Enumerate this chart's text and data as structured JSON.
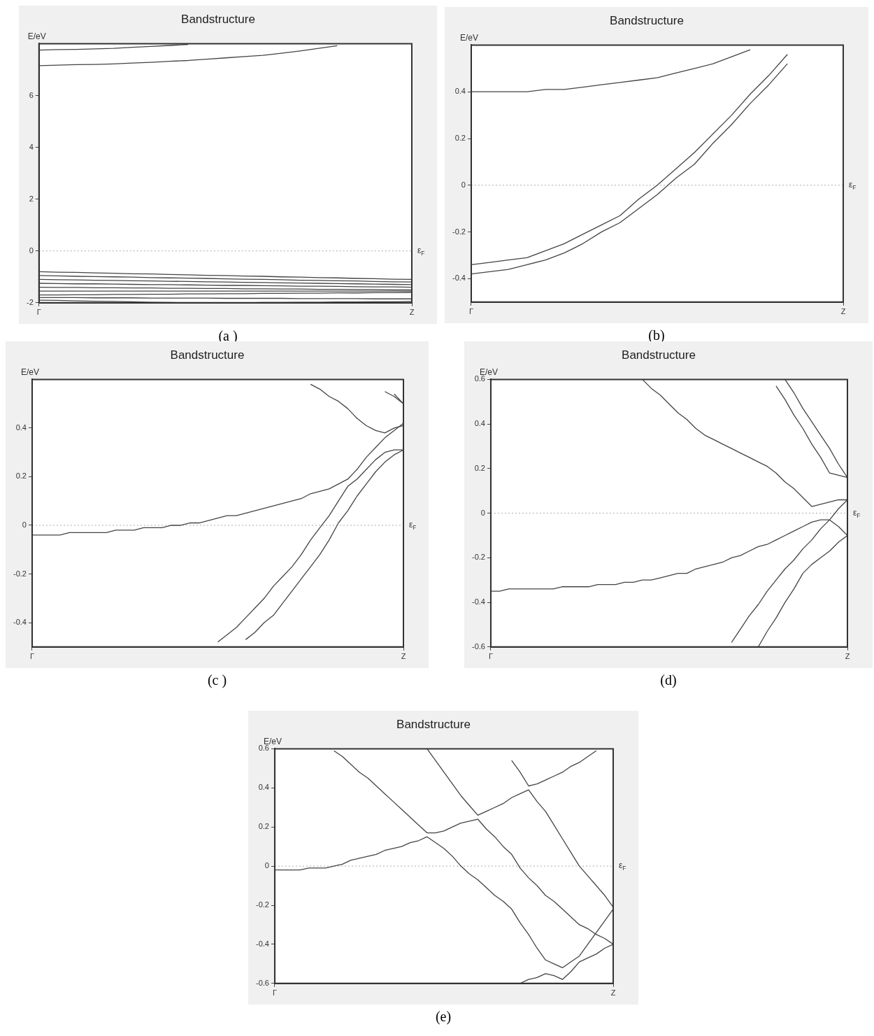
{
  "chart_data": [
    {
      "type": "line",
      "title": "Bandstructure",
      "ylabel": "E/eV",
      "categories": [
        "Γ",
        null,
        null,
        null,
        null,
        null,
        null,
        null,
        null,
        null,
        null,
        null,
        null,
        null,
        null,
        null,
        null,
        null,
        null,
        null,
        "Z"
      ],
      "ylim": [
        -2,
        8
      ],
      "yticks": [
        -2,
        0,
        2,
        4,
        6
      ],
      "marker": "none",
      "line_style": "solid",
      "ref_lines": [
        {
          "axis": "y",
          "value": 0,
          "label": "ε$_{F}$",
          "color": "#aaaaaa",
          "line_style": "dotted"
        }
      ],
      "annotations": [
        "(a )"
      ],
      "series": [
        {
          "color": "#444444",
          "values": [
            7.75,
            7.77,
            7.78,
            7.8,
            7.82,
            7.86,
            7.89,
            7.93,
            7.97,
            null,
            null,
            null,
            null,
            null,
            null,
            null,
            null,
            null,
            null,
            null,
            null
          ]
        },
        {
          "color": "#444444",
          "values": [
            7.15,
            7.17,
            7.19,
            7.2,
            7.22,
            7.25,
            7.28,
            7.32,
            7.35,
            7.4,
            7.45,
            7.5,
            7.55,
            7.63,
            7.72,
            7.82,
            7.92,
            null,
            null,
            null,
            null
          ]
        },
        {
          "color": "#444444",
          "values": [
            -0.8,
            -0.82,
            -0.83,
            -0.85,
            -0.86,
            -0.88,
            -0.89,
            -0.91,
            -0.92,
            -0.94,
            -0.95,
            -0.97,
            -0.98,
            -1.0,
            -1.01,
            -1.03,
            -1.04,
            -1.06,
            -1.07,
            -1.09,
            -1.1
          ]
        },
        {
          "color": "#444444",
          "values": [
            -0.95,
            -0.96,
            -0.98,
            -0.99,
            -1.0,
            -1.01,
            -1.03,
            -1.04,
            -1.05,
            -1.06,
            -1.08,
            -1.09,
            -1.1,
            -1.11,
            -1.13,
            -1.14,
            -1.15,
            -1.16,
            -1.18,
            -1.19,
            -1.2
          ]
        },
        {
          "color": "#444444",
          "values": [
            -1.1,
            -1.11,
            -1.12,
            -1.13,
            -1.14,
            -1.15,
            -1.16,
            -1.17,
            -1.18,
            -1.19,
            -1.2,
            -1.21,
            -1.22,
            -1.23,
            -1.24,
            -1.25,
            -1.26,
            -1.27,
            -1.28,
            -1.29,
            -1.3
          ]
        },
        {
          "color": "#444444",
          "values": [
            -1.25,
            -1.26,
            -1.27,
            -1.27,
            -1.28,
            -1.29,
            -1.3,
            -1.3,
            -1.31,
            -1.32,
            -1.33,
            -1.33,
            -1.34,
            -1.35,
            -1.36,
            -1.36,
            -1.37,
            -1.38,
            -1.39,
            -1.39,
            -1.4
          ]
        },
        {
          "color": "#444444",
          "values": [
            -1.4,
            -1.41,
            -1.41,
            -1.42,
            -1.42,
            -1.43,
            -1.43,
            -1.44,
            -1.44,
            -1.45,
            -1.45,
            -1.46,
            -1.46,
            -1.47,
            -1.47,
            -1.48,
            -1.48,
            -1.49,
            -1.49,
            -1.5,
            -1.5
          ]
        },
        {
          "color": "#444444",
          "values": [
            -1.55,
            -1.55,
            -1.55,
            -1.55,
            -1.55,
            -1.55,
            -1.55,
            -1.55,
            -1.55,
            -1.55,
            -1.55,
            -1.55,
            -1.55,
            -1.55,
            -1.55,
            -1.55,
            -1.55,
            -1.55,
            -1.55,
            -1.55,
            -1.55
          ]
        },
        {
          "color": "#444444",
          "values": [
            -1.7,
            -1.7,
            -1.69,
            -1.69,
            -1.68,
            -1.68,
            -1.67,
            -1.67,
            -1.66,
            -1.66,
            -1.65,
            -1.65,
            -1.64,
            -1.64,
            -1.63,
            -1.63,
            -1.62,
            -1.62,
            -1.61,
            -1.61,
            -1.6
          ]
        },
        {
          "color": "#444444",
          "values": [
            -1.8,
            -1.8,
            -1.8,
            -1.81,
            -1.81,
            -1.81,
            -1.82,
            -1.82,
            -1.82,
            -1.82,
            -1.83,
            -1.83,
            -1.83,
            -1.83,
            -1.84,
            -1.84,
            -1.84,
            -1.84,
            -1.85,
            -1.85,
            -1.85
          ]
        },
        {
          "color": "#444444",
          "values": [
            -1.9,
            -1.91,
            -1.93,
            -1.94,
            -1.95,
            -1.96,
            -1.98,
            -1.99,
            -2,
            -2,
            -2,
            -2,
            -1.99,
            -1.99,
            -1.98,
            -1.98,
            -1.97,
            -1.97,
            -1.96,
            -1.96,
            -1.95
          ]
        }
      ]
    },
    {
      "type": "line",
      "title": "Bandstructure",
      "ylabel": "E/eV",
      "categories": [
        "Γ",
        null,
        null,
        null,
        null,
        null,
        null,
        null,
        null,
        null,
        null,
        null,
        null,
        null,
        null,
        null,
        null,
        null,
        null,
        null,
        "Z"
      ],
      "ylim": [
        -0.5,
        0.6
      ],
      "yticks": [
        -0.4,
        -0.2,
        0,
        0.2,
        0.4
      ],
      "marker": "none",
      "line_style": "solid",
      "ref_lines": [
        {
          "axis": "y",
          "value": 0,
          "label": "ε$_{F}$",
          "color": "#aaaaaa",
          "line_style": "dotted"
        }
      ],
      "annotations": [
        "(b)"
      ],
      "series": [
        {
          "color": "#444444",
          "values": [
            0.4,
            0.4,
            0.4,
            0.4,
            0.41,
            0.41,
            0.42,
            0.43,
            0.44,
            0.45,
            0.46,
            0.48,
            0.5,
            0.52,
            0.55,
            0.58,
            null,
            null,
            null,
            null,
            null
          ]
        },
        {
          "color": "#444444",
          "values": [
            -0.34,
            -0.33,
            -0.32,
            -0.31,
            -0.28,
            -0.25,
            -0.21,
            -0.17,
            -0.13,
            -0.06,
            0,
            0.07,
            0.14,
            0.22,
            0.3,
            0.39,
            0.47,
            0.56,
            null,
            null,
            null
          ]
        },
        {
          "color": "#444444",
          "values": [
            -0.38,
            -0.37,
            -0.36,
            -0.34,
            -0.32,
            -0.29,
            -0.25,
            -0.2,
            -0.16,
            -0.1,
            -0.04,
            0.03,
            0.09,
            0.18,
            0.26,
            0.35,
            0.43,
            0.52,
            null,
            null,
            null
          ]
        }
      ]
    },
    {
      "type": "line",
      "title": "Bandstructure",
      "ylabel": "E/eV",
      "categories": [
        "Γ",
        null,
        null,
        null,
        null,
        null,
        null,
        null,
        null,
        null,
        null,
        null,
        null,
        null,
        null,
        null,
        null,
        null,
        null,
        null,
        null,
        null,
        null,
        null,
        null,
        null,
        null,
        null,
        null,
        null,
        null,
        null,
        null,
        null,
        null,
        null,
        null,
        null,
        null,
        null,
        "Z"
      ],
      "ylim": [
        -0.5,
        0.6
      ],
      "yticks": [
        -0.4,
        -0.2,
        0,
        0.2,
        0.4
      ],
      "marker": "none",
      "line_style": "solid",
      "ref_lines": [
        {
          "axis": "y",
          "value": 0,
          "label": "ε$_{F}$",
          "color": "#aaaaaa",
          "line_style": "dotted"
        }
      ],
      "annotations": [
        "(c )"
      ],
      "series": [
        {
          "color": "#444444",
          "values": [
            -0.04,
            -0.04,
            -0.04,
            -0.04,
            -0.03,
            -0.03,
            -0.03,
            -0.03,
            -0.03,
            -0.02,
            -0.02,
            -0.02,
            -0.01,
            -0.01,
            -0.01,
            0,
            0,
            0.01,
            0.01,
            0.02,
            0.03,
            0.04,
            0.04,
            0.05,
            0.06,
            0.07,
            0.08,
            0.09,
            0.1,
            0.11,
            0.13,
            0.14,
            0.15,
            0.17,
            0.19,
            0.23,
            0.28,
            0.32,
            0.36,
            0.39,
            0.42
          ]
        },
        {
          "color": "#444444",
          "values": [
            null,
            null,
            null,
            null,
            null,
            null,
            null,
            null,
            null,
            null,
            null,
            null,
            null,
            null,
            null,
            null,
            null,
            null,
            null,
            null,
            -0.48,
            -0.45,
            -0.42,
            -0.38,
            -0.34,
            -0.3,
            -0.25,
            -0.21,
            -0.17,
            -0.12,
            -0.06,
            -0.01,
            0.04,
            0.1,
            0.16,
            0.19,
            0.23,
            0.27,
            0.3,
            0.31,
            0.31
          ]
        },
        {
          "color": "#444444",
          "values": [
            null,
            null,
            null,
            null,
            null,
            null,
            null,
            null,
            null,
            null,
            null,
            null,
            null,
            null,
            null,
            null,
            null,
            null,
            null,
            null,
            null,
            null,
            null,
            -0.47,
            -0.44,
            -0.4,
            -0.37,
            -0.32,
            -0.27,
            -0.22,
            -0.17,
            -0.12,
            -0.06,
            0.01,
            0.06,
            0.12,
            0.17,
            0.22,
            0.26,
            0.29,
            0.31
          ]
        },
        {
          "color": "#444444",
          "values": [
            null,
            null,
            null,
            null,
            null,
            null,
            null,
            null,
            null,
            null,
            null,
            null,
            null,
            null,
            null,
            null,
            null,
            null,
            null,
            null,
            null,
            null,
            null,
            null,
            null,
            null,
            null,
            null,
            null,
            null,
            0.58,
            0.56,
            0.53,
            0.51,
            0.48,
            0.44,
            0.41,
            0.39,
            0.38,
            0.4,
            0.41
          ]
        },
        {
          "color": "#444444",
          "values": [
            null,
            null,
            null,
            null,
            null,
            null,
            null,
            null,
            null,
            null,
            null,
            null,
            null,
            null,
            null,
            null,
            null,
            null,
            null,
            null,
            null,
            null,
            null,
            null,
            null,
            null,
            null,
            null,
            null,
            null,
            null,
            null,
            null,
            null,
            null,
            null,
            null,
            null,
            0.55,
            0.53,
            0.5
          ]
        },
        {
          "color": "#444444",
          "values": [
            null,
            null,
            null,
            null,
            null,
            null,
            null,
            null,
            null,
            null,
            null,
            null,
            null,
            null,
            null,
            null,
            null,
            null,
            null,
            null,
            null,
            null,
            null,
            null,
            null,
            null,
            null,
            null,
            null,
            null,
            null,
            null,
            null,
            null,
            null,
            null,
            null,
            null,
            null,
            0.54,
            0.5
          ]
        }
      ]
    },
    {
      "type": "line",
      "title": "Bandstructure",
      "ylabel": "E/eV",
      "categories": [
        "Γ",
        null,
        null,
        null,
        null,
        null,
        null,
        null,
        null,
        null,
        null,
        null,
        null,
        null,
        null,
        null,
        null,
        null,
        null,
        null,
        null,
        null,
        null,
        null,
        null,
        null,
        null,
        null,
        null,
        null,
        null,
        null,
        null,
        null,
        null,
        null,
        null,
        null,
        null,
        null,
        "Z"
      ],
      "ylim": [
        -0.6,
        0.6
      ],
      "yticks": [
        -0.6,
        -0.4,
        -0.2,
        0,
        0.2,
        0.4,
        0.6
      ],
      "marker": "none",
      "line_style": "solid",
      "ref_lines": [
        {
          "axis": "y",
          "value": 0,
          "label": "ε$_{F}$",
          "color": "#aaaaaa",
          "line_style": "dotted"
        }
      ],
      "annotations": [
        "(d)"
      ],
      "series": [
        {
          "color": "#444444",
          "values": [
            -0.35,
            -0.35,
            -0.34,
            -0.34,
            -0.34,
            -0.34,
            -0.34,
            -0.34,
            -0.33,
            -0.33,
            -0.33,
            -0.33,
            -0.32,
            -0.32,
            -0.32,
            -0.31,
            -0.31,
            -0.3,
            -0.3,
            -0.29,
            -0.28,
            -0.27,
            -0.27,
            -0.25,
            -0.24,
            -0.23,
            -0.22,
            -0.2,
            -0.19,
            -0.17,
            -0.15,
            -0.14,
            -0.12,
            -0.1,
            -0.08,
            -0.06,
            -0.04,
            -0.03,
            -0.03,
            -0.06,
            -0.1
          ]
        },
        {
          "color": "#444444",
          "values": [
            null,
            null,
            null,
            null,
            null,
            null,
            null,
            null,
            null,
            null,
            null,
            null,
            null,
            null,
            null,
            null,
            null,
            0.6,
            0.56,
            0.53,
            0.49,
            0.45,
            0.42,
            0.38,
            0.35,
            0.33,
            0.31,
            0.29,
            0.27,
            0.25,
            0.23,
            0.21,
            0.18,
            0.14,
            0.11,
            0.07,
            0.03,
            0.04,
            0.05,
            0.06,
            0.06
          ]
        },
        {
          "color": "#444444",
          "values": [
            null,
            null,
            null,
            null,
            null,
            null,
            null,
            null,
            null,
            null,
            null,
            null,
            null,
            null,
            null,
            null,
            null,
            null,
            null,
            null,
            null,
            null,
            null,
            null,
            null,
            null,
            null,
            -0.58,
            -0.52,
            -0.46,
            -0.41,
            -0.35,
            -0.3,
            -0.25,
            -0.21,
            -0.16,
            -0.12,
            -0.07,
            -0.03,
            0.02,
            0.06
          ]
        },
        {
          "color": "#444444",
          "values": [
            null,
            null,
            null,
            null,
            null,
            null,
            null,
            null,
            null,
            null,
            null,
            null,
            null,
            null,
            null,
            null,
            null,
            null,
            null,
            null,
            null,
            null,
            null,
            null,
            null,
            null,
            null,
            null,
            null,
            null,
            -0.6,
            -0.53,
            -0.47,
            -0.4,
            -0.34,
            -0.27,
            -0.23,
            -0.2,
            -0.17,
            -0.13,
            -0.1
          ]
        },
        {
          "color": "#444444",
          "values": [
            null,
            null,
            null,
            null,
            null,
            null,
            null,
            null,
            null,
            null,
            null,
            null,
            null,
            null,
            null,
            null,
            null,
            null,
            null,
            null,
            null,
            null,
            null,
            null,
            null,
            null,
            null,
            null,
            null,
            null,
            null,
            null,
            0.57,
            0.51,
            0.44,
            0.38,
            0.31,
            0.25,
            0.18,
            0.17,
            0.16
          ]
        },
        {
          "color": "#444444",
          "values": [
            null,
            null,
            null,
            null,
            null,
            null,
            null,
            null,
            null,
            null,
            null,
            null,
            null,
            null,
            null,
            null,
            null,
            null,
            null,
            null,
            null,
            null,
            null,
            null,
            null,
            null,
            null,
            null,
            null,
            null,
            null,
            null,
            null,
            0.6,
            0.54,
            0.47,
            0.41,
            0.35,
            0.29,
            0.22,
            0.16
          ]
        }
      ]
    },
    {
      "type": "line",
      "title": "Bandstructure",
      "ylabel": "E/eV",
      "categories": [
        "Γ",
        null,
        null,
        null,
        null,
        null,
        null,
        null,
        null,
        null,
        null,
        null,
        null,
        null,
        null,
        null,
        null,
        null,
        null,
        null,
        null,
        null,
        null,
        null,
        null,
        null,
        null,
        null,
        null,
        null,
        null,
        null,
        null,
        null,
        null,
        null,
        null,
        null,
        null,
        null,
        "Z"
      ],
      "ylim": [
        -0.6,
        0.6
      ],
      "yticks": [
        -0.6,
        -0.4,
        -0.2,
        0,
        0.2,
        0.4,
        0.6
      ],
      "marker": "none",
      "line_style": "solid",
      "ref_lines": [
        {
          "axis": "y",
          "value": 0,
          "label": "ε$_{F}$",
          "color": "#aaaaaa",
          "line_style": "dotted"
        }
      ],
      "annotations": [
        "(e)"
      ],
      "series": [
        {
          "color": "#444444",
          "values": [
            -0.02,
            -0.02,
            -0.02,
            -0.02,
            -0.01,
            -0.01,
            -0.01,
            0,
            0.01,
            0.03,
            0.04,
            0.05,
            0.06,
            0.08,
            0.09,
            0.1,
            0.12,
            0.13,
            0.15,
            0.12,
            0.09,
            0.05,
            0,
            -0.04,
            -0.07,
            -0.11,
            -0.15,
            -0.18,
            -0.22,
            -0.29,
            -0.35,
            -0.42,
            -0.48,
            -0.5,
            -0.52,
            -0.49,
            -0.46,
            -0.4,
            -0.34,
            -0.28,
            -0.22
          ]
        },
        {
          "color": "#444444",
          "values": [
            null,
            null,
            null,
            null,
            null,
            null,
            null,
            0.59,
            0.56,
            0.52,
            0.48,
            0.45,
            0.41,
            0.37,
            0.33,
            0.29,
            0.25,
            0.21,
            0.17,
            0.17,
            0.18,
            0.2,
            0.22,
            0.23,
            0.24,
            0.19,
            0.15,
            0.1,
            0.06,
            -0.01,
            -0.06,
            -0.1,
            -0.15,
            -0.18,
            -0.22,
            -0.26,
            -0.3,
            -0.32,
            -0.35,
            -0.37,
            -0.4
          ]
        },
        {
          "color": "#444444",
          "values": [
            null,
            null,
            null,
            null,
            null,
            null,
            null,
            null,
            null,
            null,
            null,
            null,
            null,
            null,
            null,
            null,
            null,
            null,
            0.6,
            0.54,
            0.48,
            0.42,
            0.36,
            0.31,
            0.26,
            0.28,
            0.3,
            0.32,
            0.35,
            0.37,
            0.39,
            0.33,
            0.28,
            0.21,
            0.14,
            0.07,
            0,
            -0.05,
            -0.1,
            -0.15,
            -0.21
          ]
        },
        {
          "color": "#444444",
          "values": [
            null,
            null,
            null,
            null,
            null,
            null,
            null,
            null,
            null,
            null,
            null,
            null,
            null,
            null,
            null,
            null,
            null,
            null,
            null,
            null,
            null,
            null,
            null,
            null,
            null,
            null,
            null,
            null,
            0.54,
            0.48,
            0.41,
            0.42,
            0.44,
            0.46,
            0.48,
            0.51,
            0.53,
            0.56,
            0.59,
            null,
            null
          ]
        },
        {
          "color": "#444444",
          "values": [
            null,
            null,
            null,
            null,
            null,
            null,
            null,
            null,
            null,
            null,
            null,
            null,
            null,
            null,
            null,
            null,
            null,
            null,
            null,
            null,
            null,
            null,
            null,
            null,
            null,
            null,
            null,
            null,
            null,
            -0.6,
            -0.58,
            -0.57,
            -0.55,
            -0.56,
            -0.58,
            -0.54,
            -0.49,
            -0.47,
            -0.45,
            -0.42,
            -0.4
          ]
        }
      ]
    }
  ]
}
